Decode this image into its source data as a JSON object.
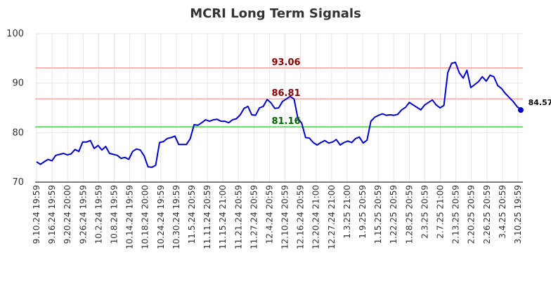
{
  "chart_data": {
    "type": "line",
    "title": "MCRI Long Term Signals",
    "xlabel": "",
    "ylabel": "",
    "ylim": [
      70,
      100
    ],
    "yticks": [
      70,
      80,
      90,
      100
    ],
    "grid": true,
    "x_tick_labels": [
      "9.10.24 19:59",
      "9.16.24 19:59",
      "9.20.24 20:00",
      "9.26.24 19:59",
      "10.2.24 19:59",
      "10.8.24 19:59",
      "10.14.24 19:59",
      "10.18.24 20:00",
      "10.24.24 19:59",
      "10.30.24 19:59",
      "11.5.24 20:59",
      "11.11.24 20:59",
      "11.15.24 21:00",
      "11.21.24 20:59",
      "11.27.24 20:59",
      "12.4.24 20:59",
      "12.10.24 20:59",
      "12.16.24 20:59",
      "12.20.24 21:00",
      "12.27.24 21:00",
      "1.3.25 21:00",
      "1.9.25 20:59",
      "1.15.25 20:59",
      "1.22.25 20:59",
      "1.28.25 20:59",
      "2.3.25 20:59",
      "2.7.25 21:00",
      "2.13.25 20:59",
      "2.20.25 20:59",
      "2.26.25 20:59",
      "3.4.25 20:59",
      "3.10.25 19:59"
    ],
    "series": [
      {
        "color": "#0000cc",
        "values": [
          74.1,
          73.6,
          74.1,
          74.6,
          74.3,
          75.4,
          75.6,
          75.8,
          75.5,
          75.7,
          76.6,
          76.2,
          78.1,
          78.1,
          78.4,
          76.8,
          77.4,
          76.5,
          77.2,
          75.8,
          75.6,
          75.4,
          74.8,
          75.0,
          74.6,
          76.2,
          76.7,
          76.5,
          75.3,
          73.1,
          73.0,
          73.4,
          78.0,
          78.2,
          78.8,
          79.0,
          79.3,
          77.6,
          77.6,
          77.6,
          78.8,
          81.6,
          81.5,
          82.0,
          82.6,
          82.3,
          82.6,
          82.7,
          82.3,
          82.3,
          82.0,
          82.6,
          82.8,
          83.6,
          84.9,
          85.3,
          83.6,
          83.5,
          85.0,
          85.3,
          86.7,
          86.0,
          84.9,
          85.0,
          86.3,
          86.8,
          87.3,
          86.8,
          82.9,
          81.9,
          79.0,
          78.9,
          78.0,
          77.5,
          78.0,
          78.4,
          77.9,
          78.1,
          78.6,
          77.5,
          78.0,
          78.3,
          78.0,
          78.8,
          79.1,
          77.9,
          78.5,
          82.3,
          83.1,
          83.5,
          83.8,
          83.5,
          83.6,
          83.5,
          83.7,
          84.6,
          85.1,
          86.1,
          85.6,
          85.1,
          84.6,
          85.6,
          86.1,
          86.6,
          85.6,
          85.0,
          85.5,
          92.1,
          94.0,
          94.2,
          92.1,
          91.0,
          92.6,
          89.1,
          89.7,
          90.3,
          91.3,
          90.4,
          91.6,
          91.3,
          89.5,
          88.9,
          87.9,
          87.1,
          86.3,
          85.3,
          84.57
        ]
      }
    ],
    "reference_lines": [
      {
        "value": 93.06,
        "label": "93.06",
        "line_color": "#ffb3b3",
        "label_color": "#8b0000"
      },
      {
        "value": 86.81,
        "label": "86.81",
        "line_color": "#ffb3b3",
        "label_color": "#8b0000"
      },
      {
        "value": 81.16,
        "label": "81.16",
        "line_color": "#66dd66",
        "label_color": "#006400"
      }
    ],
    "last_value": 84.57,
    "last_value_label": "84.57",
    "grid_color": "#e6e6e6"
  }
}
